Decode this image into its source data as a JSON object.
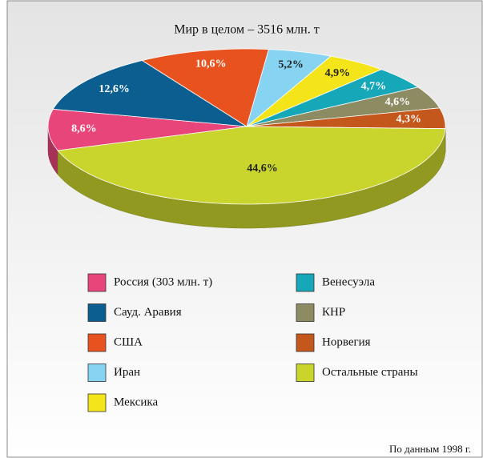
{
  "chart_data": {
    "type": "pie",
    "title": "Мир в целом – 3516 млн. т",
    "categories": [
      "Россия (303 млн. т)",
      "Сауд. Аравия",
      "США",
      "Иран",
      "Мексика",
      "Венесуэла",
      "КНР",
      "Норвегия",
      "Остальные страны"
    ],
    "values": [
      8.6,
      12.6,
      10.6,
      5.2,
      4.9,
      4.7,
      4.6,
      4.3,
      44.6
    ],
    "value_labels": [
      "8,6%",
      "12,6%",
      "10,6%",
      "5,2%",
      "4,9%",
      "4,7%",
      "4,6%",
      "4,3%",
      "44,6%"
    ],
    "colors": [
      "#e8457a",
      "#0b5e8f",
      "#e8521f",
      "#86d3f2",
      "#f4e41a",
      "#16a7b8",
      "#8c8b62",
      "#c4581c",
      "#c9d52c"
    ],
    "note": "По данным 1998 г."
  }
}
